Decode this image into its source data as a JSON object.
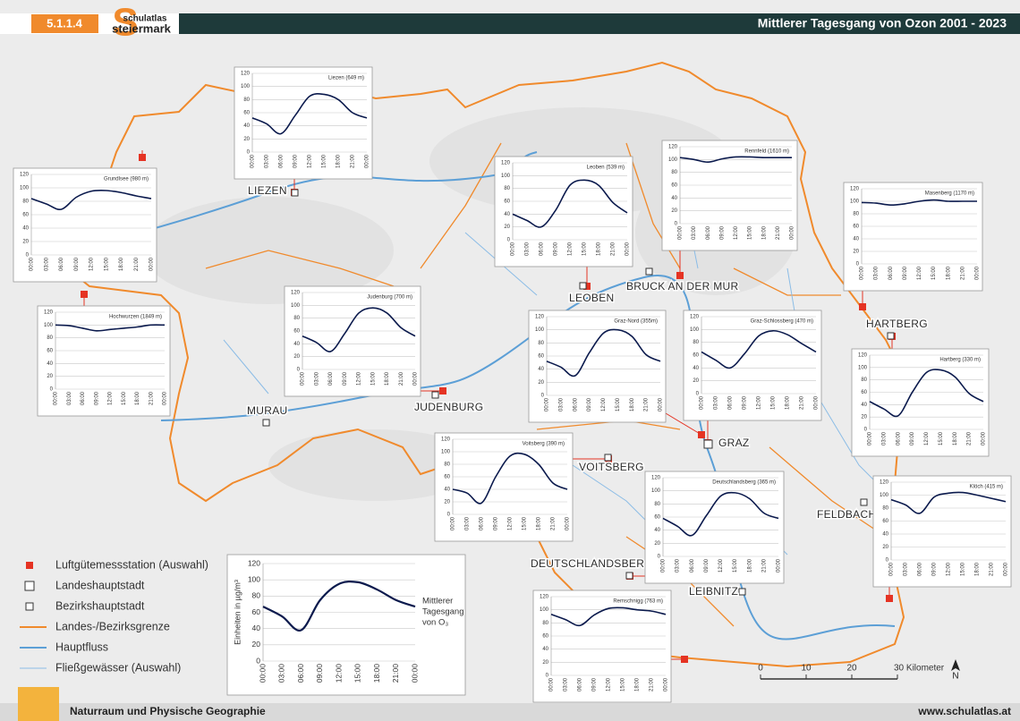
{
  "header": {
    "code": "5.1.1.4",
    "logo_top": "schulatlas",
    "logo_bottom": "steiermark",
    "title": "Mittlerer Tagesgang von Ozon 2001 - 2023"
  },
  "footer": {
    "left": "Naturraum und Physische Geographie",
    "right": "www.schulatlas.at"
  },
  "places": [
    "LIEZEN",
    "LEOBEN",
    "BRUCK AN DER MUR",
    "HARTBERG",
    "MURAU",
    "JUDENBURG",
    "GRAZ",
    "VOITSBERG",
    "FELDBACH",
    "DEUTSCHLANDSBERG",
    "LEIBNITZ"
  ],
  "legend": [
    "Luftgütemessstation (Auswahl)",
    "Landeshauptstadt",
    "Bezirkshauptstadt",
    "Landes-/Bezirksgrenze",
    "Hauptfluss",
    "Fließgewässer (Auswahl)"
  ],
  "scale": [
    "0",
    "10",
    "20",
    "30 Kilometer"
  ],
  "north": "N",
  "chart_data": [
    {
      "type": "line",
      "title": "Liezen (649 m)",
      "categories": [
        "00:00",
        "03:00",
        "06:00",
        "09:00",
        "12:00",
        "15:00",
        "18:00",
        "21:00",
        "00:00"
      ],
      "values": [
        52,
        43,
        28,
        56,
        85,
        88,
        80,
        60,
        52
      ],
      "ylim": [
        0,
        120
      ],
      "yticks": [
        0,
        20,
        40,
        60,
        80,
        100,
        120
      ],
      "color": "#0b1a4d",
      "grid": true
    },
    {
      "type": "line",
      "title": "Grundlsee (980 m)",
      "categories": [
        "00:00",
        "03:00",
        "06:00",
        "09:00",
        "12:00",
        "15:00",
        "18:00",
        "21:00",
        "00:00"
      ],
      "values": [
        84,
        76,
        68,
        86,
        95,
        96,
        93,
        88,
        84
      ],
      "ylim": [
        0,
        120
      ],
      "yticks": [
        0,
        20,
        40,
        60,
        80,
        100,
        120
      ],
      "color": "#0b1a4d",
      "grid": true
    },
    {
      "type": "line",
      "title": "Hochwurzen (1849 m)",
      "categories": [
        "00:00",
        "03:00",
        "06:00",
        "09:00",
        "12:00",
        "15:00",
        "18:00",
        "21:00",
        "00:00"
      ],
      "values": [
        100,
        99,
        95,
        91,
        93,
        95,
        97,
        100,
        100
      ],
      "ylim": [
        0,
        120
      ],
      "yticks": [
        0,
        20,
        40,
        60,
        80,
        100,
        120
      ],
      "color": "#0b1a4d",
      "grid": true
    },
    {
      "type": "line",
      "title": "Judenburg (700 m)",
      "categories": [
        "00:00",
        "03:00",
        "06:00",
        "09:00",
        "12:00",
        "15:00",
        "18:00",
        "21:00",
        "00:00"
      ],
      "values": [
        52,
        42,
        28,
        56,
        88,
        96,
        88,
        65,
        52
      ],
      "ylim": [
        0,
        120
      ],
      "yticks": [
        0,
        20,
        40,
        60,
        80,
        100,
        120
      ],
      "color": "#0b1a4d",
      "grid": true
    },
    {
      "type": "line",
      "title": "Leoben (539 m)",
      "categories": [
        "00:00",
        "03:00",
        "06:00",
        "09:00",
        "12:00",
        "15:00",
        "18:00",
        "21:00",
        "00:00"
      ],
      "values": [
        40,
        30,
        20,
        46,
        85,
        93,
        85,
        58,
        42
      ],
      "ylim": [
        0,
        120
      ],
      "yticks": [
        0,
        20,
        40,
        60,
        80,
        100,
        120
      ],
      "color": "#0b1a4d",
      "grid": true
    },
    {
      "type": "line",
      "title": "Rennfeld (1610 m)",
      "categories": [
        "00:00",
        "03:00",
        "06:00",
        "09:00",
        "12:00",
        "15:00",
        "18:00",
        "21:00",
        "00:00"
      ],
      "values": [
        103,
        100,
        96,
        101,
        104,
        104,
        103,
        103,
        103
      ],
      "ylim": [
        0,
        120
      ],
      "yticks": [
        0,
        20,
        40,
        60,
        80,
        100,
        120
      ],
      "color": "#0b1a4d",
      "grid": true
    },
    {
      "type": "line",
      "title": "Masenberg (1170 m)",
      "categories": [
        "00:00",
        "03:00",
        "06:00",
        "09:00",
        "12:00",
        "15:00",
        "18:00",
        "21:00",
        "00:00"
      ],
      "values": [
        98,
        97,
        94,
        96,
        100,
        102,
        100,
        100,
        100
      ],
      "ylim": [
        0,
        120
      ],
      "yticks": [
        0,
        20,
        40,
        60,
        80,
        100,
        120
      ],
      "color": "#0b1a4d",
      "grid": true
    },
    {
      "type": "line",
      "title": "Graz-Nord (355m)",
      "categories": [
        "00:00",
        "03:00",
        "06:00",
        "09:00",
        "12:00",
        "15:00",
        "18:00",
        "21:00",
        "00:00"
      ],
      "values": [
        52,
        43,
        30,
        65,
        95,
        100,
        90,
        62,
        52
      ],
      "ylim": [
        0,
        120
      ],
      "yticks": [
        0,
        20,
        40,
        60,
        80,
        100,
        120
      ],
      "color": "#0b1a4d",
      "grid": true
    },
    {
      "type": "line",
      "title": "Graz-Schlossberg (470 m)",
      "categories": [
        "00:00",
        "03:00",
        "06:00",
        "09:00",
        "12:00",
        "15:00",
        "18:00",
        "21:00",
        "00:00"
      ],
      "values": [
        65,
        52,
        40,
        62,
        90,
        98,
        92,
        78,
        65
      ],
      "ylim": [
        0,
        120
      ],
      "yticks": [
        0,
        20,
        40,
        60,
        80,
        100,
        120
      ],
      "color": "#0b1a4d",
      "grid": true
    },
    {
      "type": "line",
      "title": "Hartberg (330 m)",
      "categories": [
        "00:00",
        "03:00",
        "06:00",
        "09:00",
        "12:00",
        "15:00",
        "18:00",
        "21:00",
        "00:00"
      ],
      "values": [
        45,
        33,
        22,
        60,
        92,
        96,
        85,
        58,
        45
      ],
      "ylim": [
        0,
        120
      ],
      "yticks": [
        0,
        20,
        40,
        60,
        80,
        100,
        120
      ],
      "color": "#0b1a4d",
      "grid": true
    },
    {
      "type": "line",
      "title": "Voitsberg (390 m)",
      "categories": [
        "00:00",
        "03:00",
        "06:00",
        "09:00",
        "12:00",
        "15:00",
        "18:00",
        "21:00",
        "00:00"
      ],
      "values": [
        40,
        34,
        18,
        60,
        93,
        96,
        80,
        50,
        40
      ],
      "ylim": [
        0,
        120
      ],
      "yticks": [
        0,
        20,
        40,
        60,
        80,
        100,
        120
      ],
      "color": "#0b1a4d",
      "grid": true
    },
    {
      "type": "line",
      "title": "Deutschlandsberg (365 m)",
      "categories": [
        "00:00",
        "03:00",
        "06:00",
        "09:00",
        "12:00",
        "15:00",
        "18:00",
        "21:00",
        "00:00"
      ],
      "values": [
        58,
        46,
        32,
        62,
        92,
        97,
        88,
        66,
        58
      ],
      "ylim": [
        0,
        120
      ],
      "yticks": [
        0,
        20,
        40,
        60,
        80,
        100,
        120
      ],
      "color": "#0b1a4d",
      "grid": true
    },
    {
      "type": "line",
      "title": "Klöch (415 m)",
      "categories": [
        "00:00",
        "03:00",
        "06:00",
        "09:00",
        "12:00",
        "15:00",
        "18:00",
        "21:00",
        "00:00"
      ],
      "values": [
        93,
        85,
        72,
        97,
        103,
        104,
        100,
        95,
        90
      ],
      "ylim": [
        0,
        120
      ],
      "yticks": [
        0,
        20,
        40,
        60,
        80,
        100,
        120
      ],
      "color": "#0b1a4d",
      "grid": true
    },
    {
      "type": "line",
      "title": "Remschnigg (763 m)",
      "categories": [
        "00:00",
        "03:00",
        "06:00",
        "09:00",
        "12:00",
        "15:00",
        "18:00",
        "21:00",
        "00:00"
      ],
      "values": [
        93,
        85,
        76,
        92,
        102,
        103,
        100,
        98,
        93
      ],
      "ylim": [
        0,
        120
      ],
      "yticks": [
        0,
        20,
        40,
        60,
        80,
        100,
        120
      ],
      "color": "#0b1a4d",
      "grid": true
    },
    {
      "type": "line",
      "ylabel": "Einheiten in µg/m³",
      "annotation": [
        "Mittlerer",
        "Tagesgang",
        "von O₃"
      ],
      "categories": [
        "00:00",
        "03:00",
        "06:00",
        "09:00",
        "12:00",
        "15:00",
        "18:00",
        "21:00",
        "00:00"
      ],
      "values": [
        67,
        55,
        38,
        75,
        95,
        97,
        88,
        75,
        67
      ],
      "ylim": [
        0,
        120
      ],
      "yticks": [
        0,
        20,
        40,
        60,
        80,
        100,
        120
      ],
      "color": "#0b1a4d",
      "grid": true
    }
  ]
}
